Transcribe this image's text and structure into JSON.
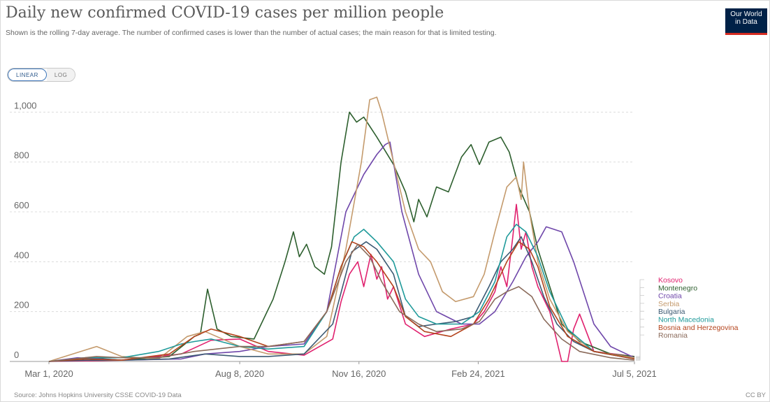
{
  "header": {
    "title": "Daily new confirmed COVID-19 cases per million people",
    "subtitle": "Shown is the rolling 7-day average. The number of confirmed cases is lower than the number of actual cases; the main reason for that is limited testing.",
    "logo_line1": "Our World",
    "logo_line2": "in Data"
  },
  "controls": {
    "linear_label": "LINEAR",
    "log_label": "LOG",
    "scale": "linear"
  },
  "footer": {
    "source": "Source: Johns Hopkins University CSSE COVID-19 Data",
    "license": "CC BY"
  },
  "chart_data": {
    "type": "line",
    "title": "Daily new confirmed COVID-19 cases per million people",
    "ylim": [
      0,
      1060
    ],
    "y_ticks": [
      0,
      200,
      400,
      600,
      800,
      1000
    ],
    "y_tick_labels": [
      "0",
      "200",
      "400",
      "600",
      "800",
      "1,000"
    ],
    "xlim": [
      "2020-03-01",
      "2021-07-05"
    ],
    "x_ticks": [
      "2020-03-01",
      "2020-08-08",
      "2020-11-16",
      "2021-02-24",
      "2021-07-05"
    ],
    "x_tick_labels": [
      "Mar 1, 2020",
      "Aug 8, 2020",
      "Nov 16, 2020",
      "Feb 24, 2021",
      "Jul 5, 2021"
    ],
    "grid": "horizontal dashed",
    "legend_position": "right, inline at line ends",
    "series": [
      {
        "name": "Kosovo",
        "color": "#e0216e",
        "points": [
          [
            "2020-03-01",
            0
          ],
          [
            "2020-05-01",
            5
          ],
          [
            "2020-06-20",
            30
          ],
          [
            "2020-07-15",
            85
          ],
          [
            "2020-08-08",
            90
          ],
          [
            "2020-09-01",
            40
          ],
          [
            "2020-10-01",
            25
          ],
          [
            "2020-10-25",
            90
          ],
          [
            "2020-11-01",
            240
          ],
          [
            "2020-11-08",
            350
          ],
          [
            "2020-11-15",
            400
          ],
          [
            "2020-11-20",
            300
          ],
          [
            "2020-11-26",
            430
          ],
          [
            "2020-12-01",
            330
          ],
          [
            "2020-12-05",
            380
          ],
          [
            "2020-12-10",
            250
          ],
          [
            "2020-12-15",
            300
          ],
          [
            "2020-12-25",
            150
          ],
          [
            "2021-01-10",
            100
          ],
          [
            "2021-02-01",
            130
          ],
          [
            "2021-02-20",
            150
          ],
          [
            "2021-03-01",
            200
          ],
          [
            "2021-03-10",
            280
          ],
          [
            "2021-03-15",
            380
          ],
          [
            "2021-03-20",
            300
          ],
          [
            "2021-03-25",
            500
          ],
          [
            "2021-03-28",
            630
          ],
          [
            "2021-04-01",
            450
          ],
          [
            "2021-04-05",
            520
          ],
          [
            "2021-04-10",
            380
          ],
          [
            "2021-04-15",
            300
          ],
          [
            "2021-04-25",
            200
          ],
          [
            "2021-05-01",
            80
          ],
          [
            "2021-05-05",
            0
          ],
          [
            "2021-05-10",
            0
          ],
          [
            "2021-05-15",
            130
          ],
          [
            "2021-05-20",
            190
          ],
          [
            "2021-06-01",
            40
          ],
          [
            "2021-07-05",
            20
          ]
        ]
      },
      {
        "name": "Montenegro",
        "color": "#2d5f2e",
        "points": [
          [
            "2020-03-01",
            0
          ],
          [
            "2020-04-01",
            15
          ],
          [
            "2020-05-01",
            5
          ],
          [
            "2020-06-10",
            20
          ],
          [
            "2020-07-01",
            100
          ],
          [
            "2020-07-06",
            110
          ],
          [
            "2020-07-12",
            290
          ],
          [
            "2020-07-20",
            130
          ],
          [
            "2020-08-01",
            100
          ],
          [
            "2020-08-20",
            90
          ],
          [
            "2020-09-05",
            250
          ],
          [
            "2020-09-15",
            400
          ],
          [
            "2020-09-22",
            520
          ],
          [
            "2020-09-27",
            420
          ],
          [
            "2020-10-03",
            470
          ],
          [
            "2020-10-10",
            380
          ],
          [
            "2020-10-18",
            350
          ],
          [
            "2020-10-24",
            460
          ],
          [
            "2020-11-01",
            800
          ],
          [
            "2020-11-08",
            1000
          ],
          [
            "2020-11-14",
            960
          ],
          [
            "2020-11-20",
            980
          ],
          [
            "2020-12-01",
            900
          ],
          [
            "2020-12-15",
            790
          ],
          [
            "2020-12-25",
            680
          ],
          [
            "2021-01-01",
            560
          ],
          [
            "2021-01-05",
            650
          ],
          [
            "2021-01-12",
            580
          ],
          [
            "2021-01-20",
            700
          ],
          [
            "2021-01-30",
            680
          ],
          [
            "2021-02-10",
            820
          ],
          [
            "2021-02-18",
            870
          ],
          [
            "2021-02-25",
            790
          ],
          [
            "2021-03-05",
            880
          ],
          [
            "2021-03-15",
            900
          ],
          [
            "2021-03-22",
            840
          ],
          [
            "2021-03-30",
            700
          ],
          [
            "2021-04-08",
            600
          ],
          [
            "2021-04-15",
            450
          ],
          [
            "2021-04-25",
            300
          ],
          [
            "2021-05-05",
            150
          ],
          [
            "2021-05-20",
            80
          ],
          [
            "2021-06-15",
            30
          ],
          [
            "2021-07-05",
            20
          ]
        ]
      },
      {
        "name": "Croatia",
        "color": "#6f47aa",
        "points": [
          [
            "2020-03-01",
            0
          ],
          [
            "2020-03-25",
            15
          ],
          [
            "2020-05-01",
            5
          ],
          [
            "2020-06-20",
            10
          ],
          [
            "2020-07-10",
            30
          ],
          [
            "2020-08-08",
            40
          ],
          [
            "2020-09-01",
            60
          ],
          [
            "2020-10-01",
            70
          ],
          [
            "2020-10-20",
            200
          ],
          [
            "2020-11-05",
            600
          ],
          [
            "2020-11-20",
            750
          ],
          [
            "2020-12-01",
            830
          ],
          [
            "2020-12-08",
            870
          ],
          [
            "2020-12-12",
            880
          ],
          [
            "2020-12-22",
            600
          ],
          [
            "2021-01-05",
            350
          ],
          [
            "2021-01-20",
            200
          ],
          [
            "2021-02-10",
            150
          ],
          [
            "2021-02-25",
            150
          ],
          [
            "2021-03-10",
            200
          ],
          [
            "2021-03-25",
            320
          ],
          [
            "2021-04-05",
            420
          ],
          [
            "2021-04-15",
            480
          ],
          [
            "2021-04-22",
            540
          ],
          [
            "2021-05-05",
            520
          ],
          [
            "2021-05-15",
            400
          ],
          [
            "2021-06-01",
            150
          ],
          [
            "2021-06-15",
            60
          ],
          [
            "2021-07-05",
            15
          ]
        ]
      },
      {
        "name": "Serbia",
        "color": "#c49a6c",
        "points": [
          [
            "2020-03-01",
            0
          ],
          [
            "2020-04-10",
            60
          ],
          [
            "2020-05-01",
            20
          ],
          [
            "2020-06-01",
            10
          ],
          [
            "2020-06-25",
            100
          ],
          [
            "2020-07-10",
            120
          ],
          [
            "2020-08-08",
            60
          ],
          [
            "2020-09-01",
            30
          ],
          [
            "2020-10-01",
            30
          ],
          [
            "2020-10-20",
            100
          ],
          [
            "2020-11-05",
            450
          ],
          [
            "2020-11-18",
            800
          ],
          [
            "2020-11-25",
            1050
          ],
          [
            "2020-12-01",
            1060
          ],
          [
            "2020-12-05",
            1000
          ],
          [
            "2020-12-15",
            800
          ],
          [
            "2020-12-25",
            600
          ],
          [
            "2021-01-05",
            450
          ],
          [
            "2021-01-15",
            400
          ],
          [
            "2021-01-25",
            280
          ],
          [
            "2021-02-05",
            240
          ],
          [
            "2021-02-20",
            260
          ],
          [
            "2021-03-01",
            350
          ],
          [
            "2021-03-10",
            520
          ],
          [
            "2021-03-20",
            700
          ],
          [
            "2021-03-28",
            740
          ],
          [
            "2021-04-01",
            650
          ],
          [
            "2021-04-03",
            800
          ],
          [
            "2021-04-08",
            600
          ],
          [
            "2021-04-15",
            400
          ],
          [
            "2021-04-25",
            250
          ],
          [
            "2021-05-10",
            120
          ],
          [
            "2021-06-01",
            40
          ],
          [
            "2021-07-05",
            15
          ]
        ]
      },
      {
        "name": "Bulgaria",
        "color": "#3c5a73",
        "points": [
          [
            "2020-03-01",
            0
          ],
          [
            "2020-04-01",
            5
          ],
          [
            "2020-05-01",
            5
          ],
          [
            "2020-06-10",
            10
          ],
          [
            "2020-07-10",
            30
          ],
          [
            "2020-08-08",
            20
          ],
          [
            "2020-09-01",
            20
          ],
          [
            "2020-10-01",
            30
          ],
          [
            "2020-10-25",
            150
          ],
          [
            "2020-11-10",
            440
          ],
          [
            "2020-11-22",
            480
          ],
          [
            "2020-12-01",
            450
          ],
          [
            "2020-12-15",
            350
          ],
          [
            "2020-12-25",
            180
          ],
          [
            "2021-01-05",
            140
          ],
          [
            "2021-01-20",
            150
          ],
          [
            "2021-02-05",
            160
          ],
          [
            "2021-02-20",
            180
          ],
          [
            "2021-03-05",
            300
          ],
          [
            "2021-03-15",
            400
          ],
          [
            "2021-03-25",
            450
          ],
          [
            "2021-04-01",
            500
          ],
          [
            "2021-04-10",
            400
          ],
          [
            "2021-04-20",
            260
          ],
          [
            "2021-05-01",
            150
          ],
          [
            "2021-05-15",
            80
          ],
          [
            "2021-06-01",
            40
          ],
          [
            "2021-07-05",
            10
          ]
        ]
      },
      {
        "name": "North Macedonia",
        "color": "#1f9a9a",
        "points": [
          [
            "2020-03-01",
            0
          ],
          [
            "2020-04-01",
            15
          ],
          [
            "2020-05-01",
            15
          ],
          [
            "2020-06-01",
            40
          ],
          [
            "2020-06-20",
            70
          ],
          [
            "2020-07-01",
            80
          ],
          [
            "2020-07-15",
            90
          ],
          [
            "2020-08-08",
            60
          ],
          [
            "2020-09-01",
            50
          ],
          [
            "2020-10-01",
            60
          ],
          [
            "2020-10-20",
            200
          ],
          [
            "2020-11-01",
            380
          ],
          [
            "2020-11-12",
            500
          ],
          [
            "2020-11-20",
            530
          ],
          [
            "2020-12-01",
            480
          ],
          [
            "2020-12-15",
            400
          ],
          [
            "2020-12-25",
            250
          ],
          [
            "2021-01-05",
            180
          ],
          [
            "2021-01-20",
            150
          ],
          [
            "2021-02-10",
            150
          ],
          [
            "2021-02-25",
            200
          ],
          [
            "2021-03-10",
            320
          ],
          [
            "2021-03-20",
            500
          ],
          [
            "2021-03-28",
            550
          ],
          [
            "2021-04-05",
            520
          ],
          [
            "2021-04-15",
            420
          ],
          [
            "2021-04-25",
            280
          ],
          [
            "2021-05-10",
            130
          ],
          [
            "2021-06-01",
            40
          ],
          [
            "2021-07-05",
            10
          ]
        ]
      },
      {
        "name": "Bosnia and Herzegovina",
        "color": "#b4441d",
        "points": [
          [
            "2020-03-01",
            0
          ],
          [
            "2020-04-01",
            10
          ],
          [
            "2020-05-01",
            5
          ],
          [
            "2020-06-10",
            30
          ],
          [
            "2020-07-01",
            100
          ],
          [
            "2020-07-15",
            130
          ],
          [
            "2020-08-08",
            100
          ],
          [
            "2020-09-01",
            60
          ],
          [
            "2020-10-01",
            80
          ],
          [
            "2020-10-20",
            200
          ],
          [
            "2020-11-01",
            380
          ],
          [
            "2020-11-10",
            480
          ],
          [
            "2020-11-20",
            460
          ],
          [
            "2020-12-01",
            400
          ],
          [
            "2020-12-15",
            300
          ],
          [
            "2020-12-25",
            180
          ],
          [
            "2021-01-10",
            120
          ],
          [
            "2021-02-01",
            100
          ],
          [
            "2021-02-20",
            150
          ],
          [
            "2021-03-05",
            250
          ],
          [
            "2021-03-20",
            400
          ],
          [
            "2021-03-30",
            480
          ],
          [
            "2021-04-08",
            450
          ],
          [
            "2021-04-15",
            380
          ],
          [
            "2021-04-25",
            220
          ],
          [
            "2021-05-10",
            100
          ],
          [
            "2021-06-01",
            40
          ],
          [
            "2021-07-05",
            10
          ]
        ]
      },
      {
        "name": "Romania",
        "color": "#8a6a5a",
        "points": [
          [
            "2020-03-01",
            0
          ],
          [
            "2020-04-10",
            20
          ],
          [
            "2020-05-01",
            15
          ],
          [
            "2020-06-01",
            15
          ],
          [
            "2020-07-01",
            40
          ],
          [
            "2020-08-08",
            60
          ],
          [
            "2020-09-01",
            60
          ],
          [
            "2020-10-01",
            80
          ],
          [
            "2020-10-20",
            200
          ],
          [
            "2020-11-05",
            400
          ],
          [
            "2020-11-15",
            470
          ],
          [
            "2020-11-25",
            420
          ],
          [
            "2020-12-05",
            320
          ],
          [
            "2020-12-20",
            200
          ],
          [
            "2021-01-05",
            150
          ],
          [
            "2021-01-20",
            120
          ],
          [
            "2021-02-10",
            130
          ],
          [
            "2021-02-25",
            160
          ],
          [
            "2021-03-10",
            250
          ],
          [
            "2021-03-20",
            280
          ],
          [
            "2021-03-30",
            300
          ],
          [
            "2021-04-10",
            260
          ],
          [
            "2021-04-20",
            170
          ],
          [
            "2021-05-05",
            90
          ],
          [
            "2021-05-20",
            40
          ],
          [
            "2021-06-15",
            15
          ],
          [
            "2021-07-05",
            5
          ]
        ]
      }
    ]
  }
}
